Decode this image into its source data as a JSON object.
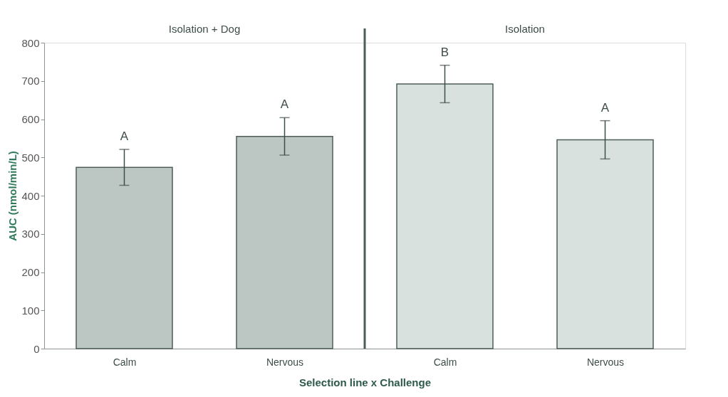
{
  "chart_data": {
    "type": "bar",
    "categories": [
      "Calm",
      "Nervous",
      "Calm",
      "Nervous"
    ],
    "values": [
      474,
      555,
      692,
      546
    ],
    "errors": [
      47,
      49,
      49,
      50
    ],
    "colors": [
      "#bcc6c2",
      "#bcc6c2",
      "#d9e1de",
      "#d9e1de"
    ],
    "value_labels": [
      "A",
      "A",
      "B",
      "A"
    ],
    "annotations": [
      "Isolation + Dog",
      "Isolation"
    ],
    "xlabel": "Selection line x Challenge",
    "ylabel": "AUC (nmol/min/L)",
    "ylim": [
      0,
      800
    ],
    "yticks": [
      0,
      100,
      200,
      300,
      400,
      500,
      600,
      700,
      800
    ],
    "grid": false
  }
}
